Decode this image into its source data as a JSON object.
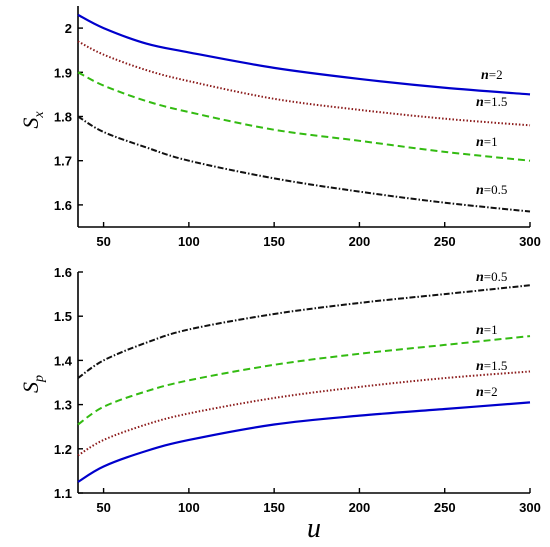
{
  "chart_data": [
    {
      "type": "line",
      "ylabel": "S",
      "ylabel_sub": "x",
      "xlabel": "",
      "xlim": [
        35,
        300
      ],
      "ylim": [
        1.55,
        2.05
      ],
      "xticks": [
        50,
        100,
        150,
        200,
        250,
        300
      ],
      "yticks": [
        1.6,
        1.7,
        1.8,
        1.9,
        2.0
      ],
      "ytick_labels": [
        "1.6",
        "1.7",
        "1.8",
        "1.9",
        "2"
      ],
      "grid": false,
      "series": [
        {
          "name": "n=2",
          "label_n": "n",
          "label_val": "=2",
          "color": "#0000cc",
          "dash": "solid",
          "x": [
            35,
            50,
            75,
            100,
            150,
            200,
            250,
            300
          ],
          "values": [
            2.03,
            2.0,
            1.965,
            1.945,
            1.91,
            1.885,
            1.865,
            1.85
          ]
        },
        {
          "name": "n=1.5",
          "label_n": "n",
          "label_val": "=1.5",
          "color": "#8b1a1a",
          "dash": "dotted",
          "x": [
            35,
            50,
            75,
            100,
            150,
            200,
            250,
            300
          ],
          "values": [
            1.97,
            1.94,
            1.905,
            1.88,
            1.84,
            1.815,
            1.795,
            1.78
          ]
        },
        {
          "name": "n=1",
          "label_n": "n",
          "label_val": "=1",
          "color": "#33bb11",
          "dash": "dashed",
          "x": [
            35,
            50,
            75,
            100,
            150,
            200,
            250,
            300
          ],
          "values": [
            1.9,
            1.87,
            1.835,
            1.81,
            1.77,
            1.745,
            1.72,
            1.7
          ]
        },
        {
          "name": "n=0.5",
          "label_n": "n",
          "label_val": "=0.5",
          "color": "#111111",
          "dash": "dashdot",
          "x": [
            35,
            50,
            75,
            100,
            150,
            200,
            250,
            300
          ],
          "values": [
            1.8,
            1.765,
            1.73,
            1.7,
            1.66,
            1.63,
            1.605,
            1.585
          ]
        }
      ]
    },
    {
      "type": "line",
      "ylabel": "S",
      "ylabel_sub": "p",
      "xlabel": "u",
      "xlim": [
        35,
        300
      ],
      "ylim": [
        1.1,
        1.6
      ],
      "xticks": [
        50,
        100,
        150,
        200,
        250,
        300
      ],
      "yticks": [
        1.1,
        1.2,
        1.3,
        1.4,
        1.5,
        1.6
      ],
      "ytick_labels": [
        "1.1",
        "1.2",
        "1.3",
        "1.4",
        "1.5",
        "1.6"
      ],
      "grid": false,
      "series": [
        {
          "name": "n=0.5",
          "label_n": "n",
          "label_val": "=0.5",
          "color": "#111111",
          "dash": "dashdot",
          "x": [
            35,
            50,
            75,
            100,
            150,
            200,
            250,
            300
          ],
          "values": [
            1.36,
            1.4,
            1.44,
            1.47,
            1.505,
            1.53,
            1.55,
            1.57
          ]
        },
        {
          "name": "n=1",
          "label_n": "n",
          "label_val": "=1",
          "color": "#33bb11",
          "dash": "dashed",
          "x": [
            35,
            50,
            75,
            100,
            150,
            200,
            250,
            300
          ],
          "values": [
            1.255,
            1.295,
            1.33,
            1.355,
            1.39,
            1.415,
            1.435,
            1.455
          ]
        },
        {
          "name": "n=1.5",
          "label_n": "n",
          "label_val": "=1.5",
          "color": "#8b1a1a",
          "dash": "dotted",
          "x": [
            35,
            50,
            75,
            100,
            150,
            200,
            250,
            300
          ],
          "values": [
            1.185,
            1.22,
            1.255,
            1.28,
            1.315,
            1.34,
            1.36,
            1.375
          ]
        },
        {
          "name": "n=2",
          "label_n": "n",
          "label_val": "=2",
          "color": "#0000cc",
          "dash": "solid",
          "x": [
            35,
            50,
            75,
            100,
            150,
            200,
            250,
            300
          ],
          "values": [
            1.125,
            1.16,
            1.195,
            1.22,
            1.255,
            1.275,
            1.29,
            1.305
          ]
        }
      ]
    }
  ]
}
